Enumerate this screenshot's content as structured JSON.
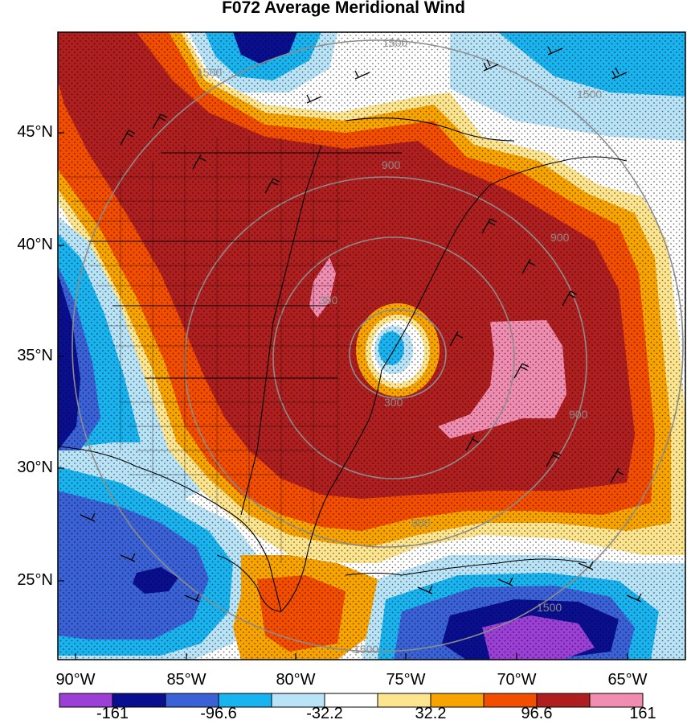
{
  "title": "F072 Average Meridional Wind",
  "lat_labels": [
    "45°N",
    "40°N",
    "35°N",
    "30°N",
    "25°N"
  ],
  "lon_labels": [
    "90°W",
    "85°W",
    "80°W",
    "75°W",
    "70°W",
    "65°W"
  ],
  "colorbar": {
    "labels": [
      "-161",
      "-96.6",
      "-32.2",
      "32.2",
      "96.6",
      "161"
    ],
    "colors": [
      "#9b3fd6",
      "#0a0f8f",
      "#3a62d6",
      "#19b4f0",
      "#b9e3f7",
      "#ffffff",
      "#fce58e",
      "#f7a300",
      "#f34d00",
      "#b01f1f",
      "#f08cb0"
    ]
  },
  "contour_labels": [
    "1500",
    "1500",
    "1500",
    "900",
    "900",
    "900",
    "900",
    "300",
    "300",
    "1500",
    "1500"
  ],
  "colors": {
    "deep_red": "#b01f1f",
    "red_orange": "#f34d00",
    "orange": "#f7a300",
    "yellow": "#fce58e",
    "pink": "#f08cb0",
    "light_blue": "#b9e3f7",
    "cyan": "#19b4f0",
    "royal_blue": "#3a62d6",
    "navy": "#0a0f8f",
    "purple": "#9b3fd6"
  }
}
